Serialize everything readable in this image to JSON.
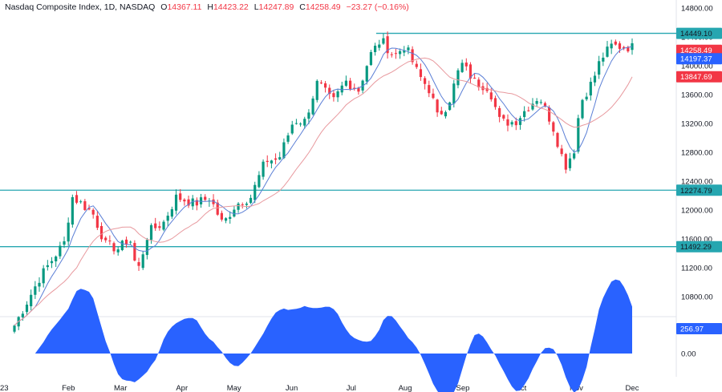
{
  "header": {
    "title": "Nasdaq Composite Index, 1D, NASDAQ",
    "o_key": "O",
    "open": "14367.11",
    "h_key": "H",
    "high": "14423.22",
    "l_key": "L",
    "low": "14247.89",
    "c_key": "C",
    "close": "14258.49",
    "change": "−23.27 (−0.16%)"
  },
  "colors": {
    "up": "#089981",
    "down": "#f23645",
    "level": "#26a6b0",
    "ma_fast": "#5b7fd6",
    "ma_slow": "#e8999e",
    "osc": "#2962ff",
    "tag_close": "#f23645",
    "tag_fast": "#2962ff",
    "tag_slow": "#f23645",
    "tag_osc": "#2962ff"
  },
  "chart_data": {
    "type": "candlestick",
    "title": "Nasdaq Composite Index, 1D, NASDAQ",
    "y_axis": {
      "range": [
        10400,
        14900
      ],
      "ticks": [
        "14800.00",
        "14400.00",
        "14000.00",
        "13600.00",
        "13200.00",
        "12800.00",
        "12400.00",
        "12000.00",
        "11600.00",
        "11200.00",
        "10800.00"
      ]
    },
    "x_axis": {
      "ticks": [
        {
          "label": "23",
          "date": "2023-01-03"
        },
        {
          "label": "Feb",
          "date": "2023-02-01"
        },
        {
          "label": "Mar",
          "date": "2023-03-01"
        },
        {
          "label": "Apr",
          "date": "2023-04-03"
        },
        {
          "label": "May",
          "date": "2023-05-01"
        },
        {
          "label": "Jun",
          "date": "2023-06-01"
        },
        {
          "label": "Jul",
          "date": "2023-07-03"
        },
        {
          "label": "Aug",
          "date": "2023-08-01"
        },
        {
          "label": "Sep",
          "date": "2023-09-01"
        },
        {
          "label": "Oct",
          "date": "2023-10-02"
        },
        {
          "label": "Nov",
          "date": "2023-11-01"
        },
        {
          "label": "Dec",
          "date": "2023-12-01"
        }
      ]
    },
    "horizontal_levels": [
      {
        "value": 14449.1,
        "label": "14449.10"
      },
      {
        "value": 12274.79,
        "label": "12274.79"
      },
      {
        "value": 11492.29,
        "label": "11492.29"
      }
    ],
    "price_tags": [
      {
        "value": 14258.49,
        "label": "14258.49",
        "kind": "close"
      },
      {
        "value": 14197.37,
        "label": "14197.37",
        "kind": "ma_fast"
      },
      {
        "value": 13847.69,
        "label": "13847.69",
        "kind": "ma_slow"
      }
    ],
    "series": [
      {
        "date": "2023-01-03",
        "value": 10400
      },
      {
        "date": "2023-01-10",
        "value": 10740
      },
      {
        "date": "2023-01-17",
        "value": 11080
      },
      {
        "date": "2023-01-24",
        "value": 11340
      },
      {
        "date": "2023-01-31",
        "value": 11590
      },
      {
        "date": "2023-02-02",
        "value": 12200
      },
      {
        "date": "2023-02-07",
        "value": 12110
      },
      {
        "date": "2023-02-14",
        "value": 11960
      },
      {
        "date": "2023-02-21",
        "value": 11520
      },
      {
        "date": "2023-02-28",
        "value": 11460
      },
      {
        "date": "2023-03-06",
        "value": 11620
      },
      {
        "date": "2023-03-10",
        "value": 11120
      },
      {
        "date": "2023-03-16",
        "value": 11700
      },
      {
        "date": "2023-03-24",
        "value": 11820
      },
      {
        "date": "2023-03-31",
        "value": 12180
      },
      {
        "date": "2023-04-10",
        "value": 12090
      },
      {
        "date": "2023-04-18",
        "value": 12170
      },
      {
        "date": "2023-04-25",
        "value": 11800
      },
      {
        "date": "2023-05-02",
        "value": 12080
      },
      {
        "date": "2023-05-10",
        "value": 12180
      },
      {
        "date": "2023-05-18",
        "value": 12690
      },
      {
        "date": "2023-05-25",
        "value": 12700
      },
      {
        "date": "2023-06-02",
        "value": 13240
      },
      {
        "date": "2023-06-08",
        "value": 13230
      },
      {
        "date": "2023-06-15",
        "value": 13780
      },
      {
        "date": "2023-06-23",
        "value": 13490
      },
      {
        "date": "2023-06-30",
        "value": 13790
      },
      {
        "date": "2023-07-07",
        "value": 13660
      },
      {
        "date": "2023-07-13",
        "value": 14140
      },
      {
        "date": "2023-07-19",
        "value": 14360
      },
      {
        "date": "2023-07-26",
        "value": 14130
      },
      {
        "date": "2023-08-01",
        "value": 14280
      },
      {
        "date": "2023-08-08",
        "value": 13880
      },
      {
        "date": "2023-08-15",
        "value": 13630
      },
      {
        "date": "2023-08-18",
        "value": 13290
      },
      {
        "date": "2023-08-24",
        "value": 13460
      },
      {
        "date": "2023-08-31",
        "value": 14040
      },
      {
        "date": "2023-09-08",
        "value": 13760
      },
      {
        "date": "2023-09-15",
        "value": 13700
      },
      {
        "date": "2023-09-21",
        "value": 13220
      },
      {
        "date": "2023-09-29",
        "value": 13220
      },
      {
        "date": "2023-10-06",
        "value": 13430
      },
      {
        "date": "2023-10-12",
        "value": 13580
      },
      {
        "date": "2023-10-19",
        "value": 13190
      },
      {
        "date": "2023-10-26",
        "value": 12600
      },
      {
        "date": "2023-10-31",
        "value": 12850
      },
      {
        "date": "2023-11-03",
        "value": 13480
      },
      {
        "date": "2023-11-10",
        "value": 13800
      },
      {
        "date": "2023-11-14",
        "value": 14090
      },
      {
        "date": "2023-11-20",
        "value": 14280
      },
      {
        "date": "2023-11-27",
        "value": 14258
      }
    ],
    "oscillator": {
      "y_axis": {
        "ticks": [
          "256.97",
          "0.00"
        ]
      },
      "last_value": 256.97
    },
    "legend": "none",
    "grid": false
  }
}
